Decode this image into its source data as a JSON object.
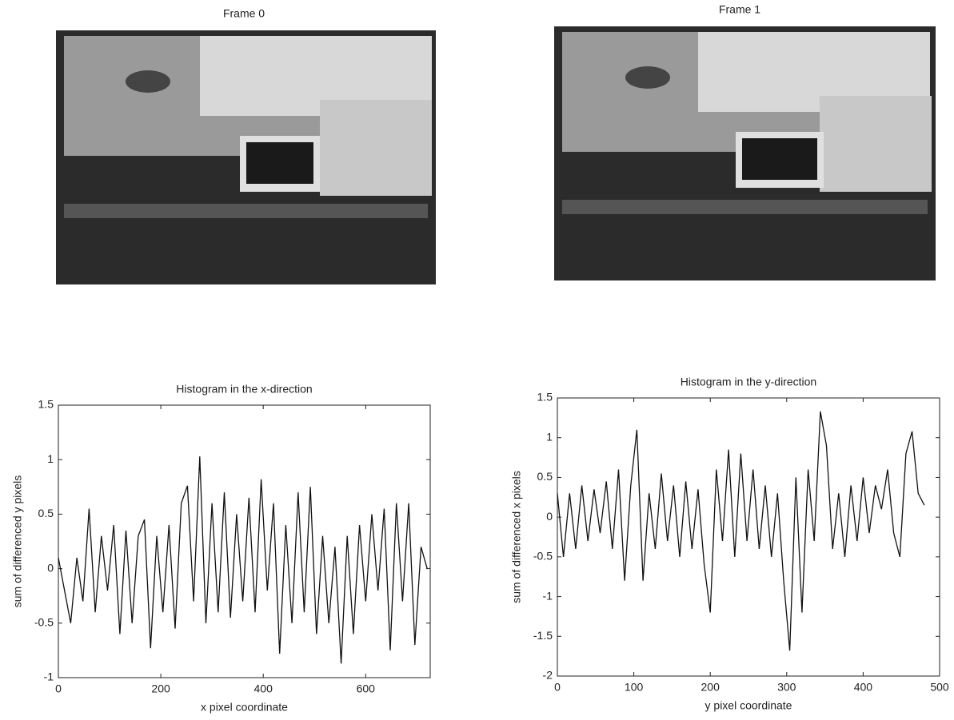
{
  "images": [
    {
      "title": "Frame 0"
    },
    {
      "title": "Frame 1"
    }
  ],
  "chart_data": [
    {
      "type": "line",
      "title": "Histogram in the x-direction",
      "x_label": "x pixel coordinate",
      "y_label": "sum of differenced y pixels",
      "color": "#111111",
      "xlim": [
        0,
        726
      ],
      "xticks": [
        0,
        200,
        400,
        600
      ],
      "ylim": [
        -1,
        1.5
      ],
      "yticks": [
        -1,
        -0.5,
        0,
        0.5,
        1,
        1.5
      ],
      "x": [
        0,
        12,
        24,
        36,
        48,
        60,
        72,
        84,
        96,
        108,
        120,
        132,
        144,
        156,
        168,
        180,
        192,
        204,
        216,
        228,
        240,
        252,
        264,
        276,
        288,
        300,
        312,
        324,
        336,
        348,
        360,
        372,
        384,
        396,
        408,
        420,
        432,
        444,
        456,
        468,
        480,
        492,
        504,
        516,
        528,
        540,
        552,
        564,
        576,
        588,
        600,
        612,
        624,
        636,
        648,
        660,
        672,
        684,
        696,
        708,
        720
      ],
      "values": [
        0.1,
        -0.2,
        -0.5,
        0.1,
        -0.3,
        0.55,
        -0.4,
        0.3,
        -0.2,
        0.4,
        -0.6,
        0.35,
        -0.5,
        0.3,
        0.45,
        -0.73,
        0.3,
        -0.4,
        0.4,
        -0.55,
        0.6,
        0.76,
        -0.3,
        1.03,
        -0.5,
        0.6,
        -0.4,
        0.7,
        -0.45,
        0.5,
        -0.3,
        0.65,
        -0.4,
        0.82,
        -0.2,
        0.6,
        -0.78,
        0.4,
        -0.5,
        0.7,
        -0.4,
        0.75,
        -0.6,
        0.3,
        -0.5,
        0.2,
        -0.87,
        0.3,
        -0.6,
        0.4,
        -0.3,
        0.5,
        -0.2,
        0.55,
        -0.75,
        0.6,
        -0.3,
        0.6,
        -0.7,
        0.2,
        0.0
      ]
    },
    {
      "type": "line",
      "title": "Histogram in the y-direction",
      "x_label": "y pixel coordinate",
      "y_label": "sum of differenced x pixels",
      "color": "#111111",
      "xlim": [
        0,
        500
      ],
      "xticks": [
        0,
        100,
        200,
        300,
        400,
        500
      ],
      "ylim": [
        -2,
        1.5
      ],
      "yticks": [
        -2,
        -1.5,
        -1,
        -0.5,
        0,
        0.5,
        1,
        1.5
      ],
      "x": [
        0,
        8,
        16,
        24,
        32,
        40,
        48,
        56,
        64,
        72,
        80,
        88,
        96,
        104,
        112,
        120,
        128,
        136,
        144,
        152,
        160,
        168,
        176,
        184,
        192,
        200,
        208,
        216,
        224,
        232,
        240,
        248,
        256,
        264,
        272,
        280,
        288,
        296,
        304,
        312,
        320,
        328,
        336,
        344,
        352,
        360,
        368,
        376,
        384,
        392,
        400,
        408,
        416,
        424,
        432,
        440,
        448,
        456,
        464,
        472,
        480
      ],
      "values": [
        0.3,
        -0.5,
        0.3,
        -0.4,
        0.4,
        -0.3,
        0.35,
        -0.2,
        0.45,
        -0.4,
        0.6,
        -0.8,
        0.4,
        1.1,
        -0.8,
        0.3,
        -0.4,
        0.55,
        -0.3,
        0.4,
        -0.5,
        0.45,
        -0.4,
        0.35,
        -0.6,
        -1.2,
        0.6,
        -0.3,
        0.85,
        -0.5,
        0.8,
        -0.3,
        0.6,
        -0.4,
        0.4,
        -0.5,
        0.3,
        -0.8,
        -1.68,
        0.5,
        -1.2,
        0.6,
        -0.3,
        1.33,
        0.9,
        -0.4,
        0.3,
        -0.5,
        0.4,
        -0.3,
        0.5,
        -0.2,
        0.4,
        0.1,
        0.6,
        -0.2,
        -0.5,
        0.8,
        1.08,
        0.3,
        0.15
      ]
    }
  ]
}
